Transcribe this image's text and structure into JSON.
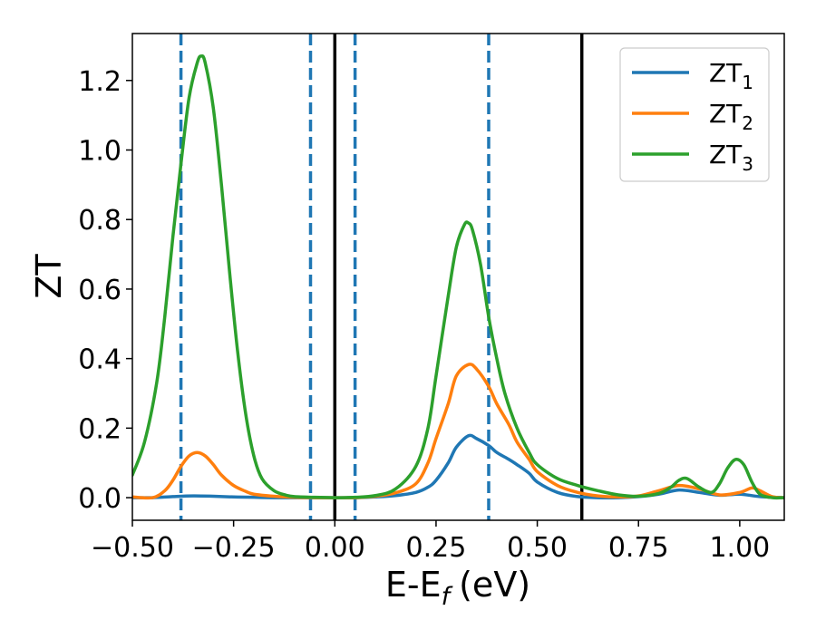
{
  "chart_data": {
    "type": "line",
    "xlabel": "E-E",
    "xlabel_sub": "f",
    "xlabel_unit": "(eV)",
    "ylabel": "ZT",
    "xlim": [
      -0.5,
      1.11
    ],
    "ylim": [
      -0.065,
      1.335
    ],
    "x_ticks": [
      -0.5,
      -0.25,
      0.0,
      0.25,
      0.5,
      0.75,
      1.0
    ],
    "x_tick_labels": [
      "−0.50",
      "−0.25",
      "0.00",
      "0.25",
      "0.50",
      "0.75",
      "1.00"
    ],
    "y_ticks": [
      0.0,
      0.2,
      0.4,
      0.6,
      0.8,
      1.0,
      1.2
    ],
    "y_tick_labels": [
      "0.0",
      "0.2",
      "0.4",
      "0.6",
      "0.8",
      "1.0",
      "1.2"
    ],
    "grid": false,
    "legend_position": "top-right",
    "vlines_solid": [
      0.0,
      0.61
    ],
    "vlines_dashed": [
      -0.38,
      -0.06,
      0.05,
      0.38
    ],
    "vline_solid_color": "#000000",
    "vline_dashed_color": "#1f77b4",
    "series": [
      {
        "name": "ZT",
        "sub": "1",
        "color": "#1f77b4",
        "x": [
          -0.5,
          -0.45,
          -0.4,
          -0.35,
          -0.3,
          -0.25,
          -0.2,
          -0.15,
          -0.1,
          -0.05,
          0.0,
          0.05,
          0.1,
          0.15,
          0.2,
          0.23,
          0.25,
          0.28,
          0.3,
          0.33,
          0.35,
          0.38,
          0.4,
          0.43,
          0.45,
          0.48,
          0.5,
          0.55,
          0.6,
          0.65,
          0.7,
          0.75,
          0.8,
          0.85,
          0.9,
          0.95,
          1.0,
          1.05,
          1.11
        ],
        "y": [
          0.0,
          0.0,
          0.003,
          0.005,
          0.004,
          0.002,
          0.001,
          0.0,
          0.0,
          0.0,
          0.0,
          0.0,
          0.002,
          0.006,
          0.015,
          0.03,
          0.05,
          0.1,
          0.145,
          0.178,
          0.17,
          0.15,
          0.13,
          0.11,
          0.095,
          0.07,
          0.045,
          0.015,
          0.003,
          0.0,
          0.0,
          0.003,
          0.01,
          0.022,
          0.015,
          0.007,
          0.01,
          0.003,
          0.0
        ]
      },
      {
        "name": "ZT",
        "sub": "2",
        "color": "#ff7f0e",
        "x": [
          -0.5,
          -0.45,
          -0.42,
          -0.4,
          -0.38,
          -0.36,
          -0.34,
          -0.32,
          -0.3,
          -0.28,
          -0.25,
          -0.22,
          -0.2,
          -0.15,
          -0.1,
          -0.05,
          0.0,
          0.05,
          0.1,
          0.15,
          0.2,
          0.23,
          0.25,
          0.28,
          0.3,
          0.33,
          0.35,
          0.38,
          0.4,
          0.43,
          0.45,
          0.48,
          0.5,
          0.55,
          0.6,
          0.65,
          0.7,
          0.75,
          0.8,
          0.85,
          0.9,
          0.95,
          1.0,
          1.03,
          1.05,
          1.08,
          1.11
        ],
        "y": [
          0.002,
          0.0,
          0.02,
          0.05,
          0.09,
          0.12,
          0.13,
          0.12,
          0.095,
          0.065,
          0.035,
          0.018,
          0.01,
          0.004,
          0.001,
          0.0,
          0.0,
          0.0,
          0.004,
          0.014,
          0.04,
          0.1,
          0.17,
          0.27,
          0.35,
          0.383,
          0.37,
          0.32,
          0.27,
          0.21,
          0.16,
          0.11,
          0.075,
          0.035,
          0.015,
          0.005,
          0.002,
          0.005,
          0.02,
          0.035,
          0.025,
          0.008,
          0.015,
          0.028,
          0.02,
          0.003,
          0.0
        ]
      },
      {
        "name": "ZT",
        "sub": "3",
        "color": "#2ca02c",
        "x": [
          -0.5,
          -0.47,
          -0.44,
          -0.42,
          -0.4,
          -0.38,
          -0.36,
          -0.34,
          -0.33,
          -0.32,
          -0.3,
          -0.28,
          -0.26,
          -0.24,
          -0.22,
          -0.2,
          -0.18,
          -0.15,
          -0.12,
          -0.1,
          -0.05,
          0.0,
          0.05,
          0.1,
          0.15,
          0.2,
          0.23,
          0.25,
          0.28,
          0.3,
          0.32,
          0.33,
          0.34,
          0.36,
          0.38,
          0.4,
          0.42,
          0.45,
          0.48,
          0.5,
          0.55,
          0.6,
          0.65,
          0.7,
          0.75,
          0.8,
          0.83,
          0.85,
          0.87,
          0.9,
          0.93,
          0.95,
          0.97,
          0.99,
          1.01,
          1.03,
          1.05,
          1.08,
          1.11
        ],
        "y": [
          0.065,
          0.16,
          0.33,
          0.52,
          0.75,
          0.96,
          1.15,
          1.25,
          1.27,
          1.25,
          1.12,
          0.9,
          0.65,
          0.42,
          0.24,
          0.12,
          0.055,
          0.02,
          0.007,
          0.003,
          0.001,
          0.0,
          0.001,
          0.006,
          0.025,
          0.09,
          0.2,
          0.35,
          0.58,
          0.72,
          0.785,
          0.79,
          0.77,
          0.67,
          0.52,
          0.4,
          0.3,
          0.2,
          0.13,
          0.095,
          0.055,
          0.035,
          0.02,
          0.008,
          0.004,
          0.012,
          0.03,
          0.05,
          0.055,
          0.03,
          0.015,
          0.04,
          0.085,
          0.11,
          0.095,
          0.045,
          0.01,
          0.0,
          0.0
        ]
      }
    ]
  }
}
